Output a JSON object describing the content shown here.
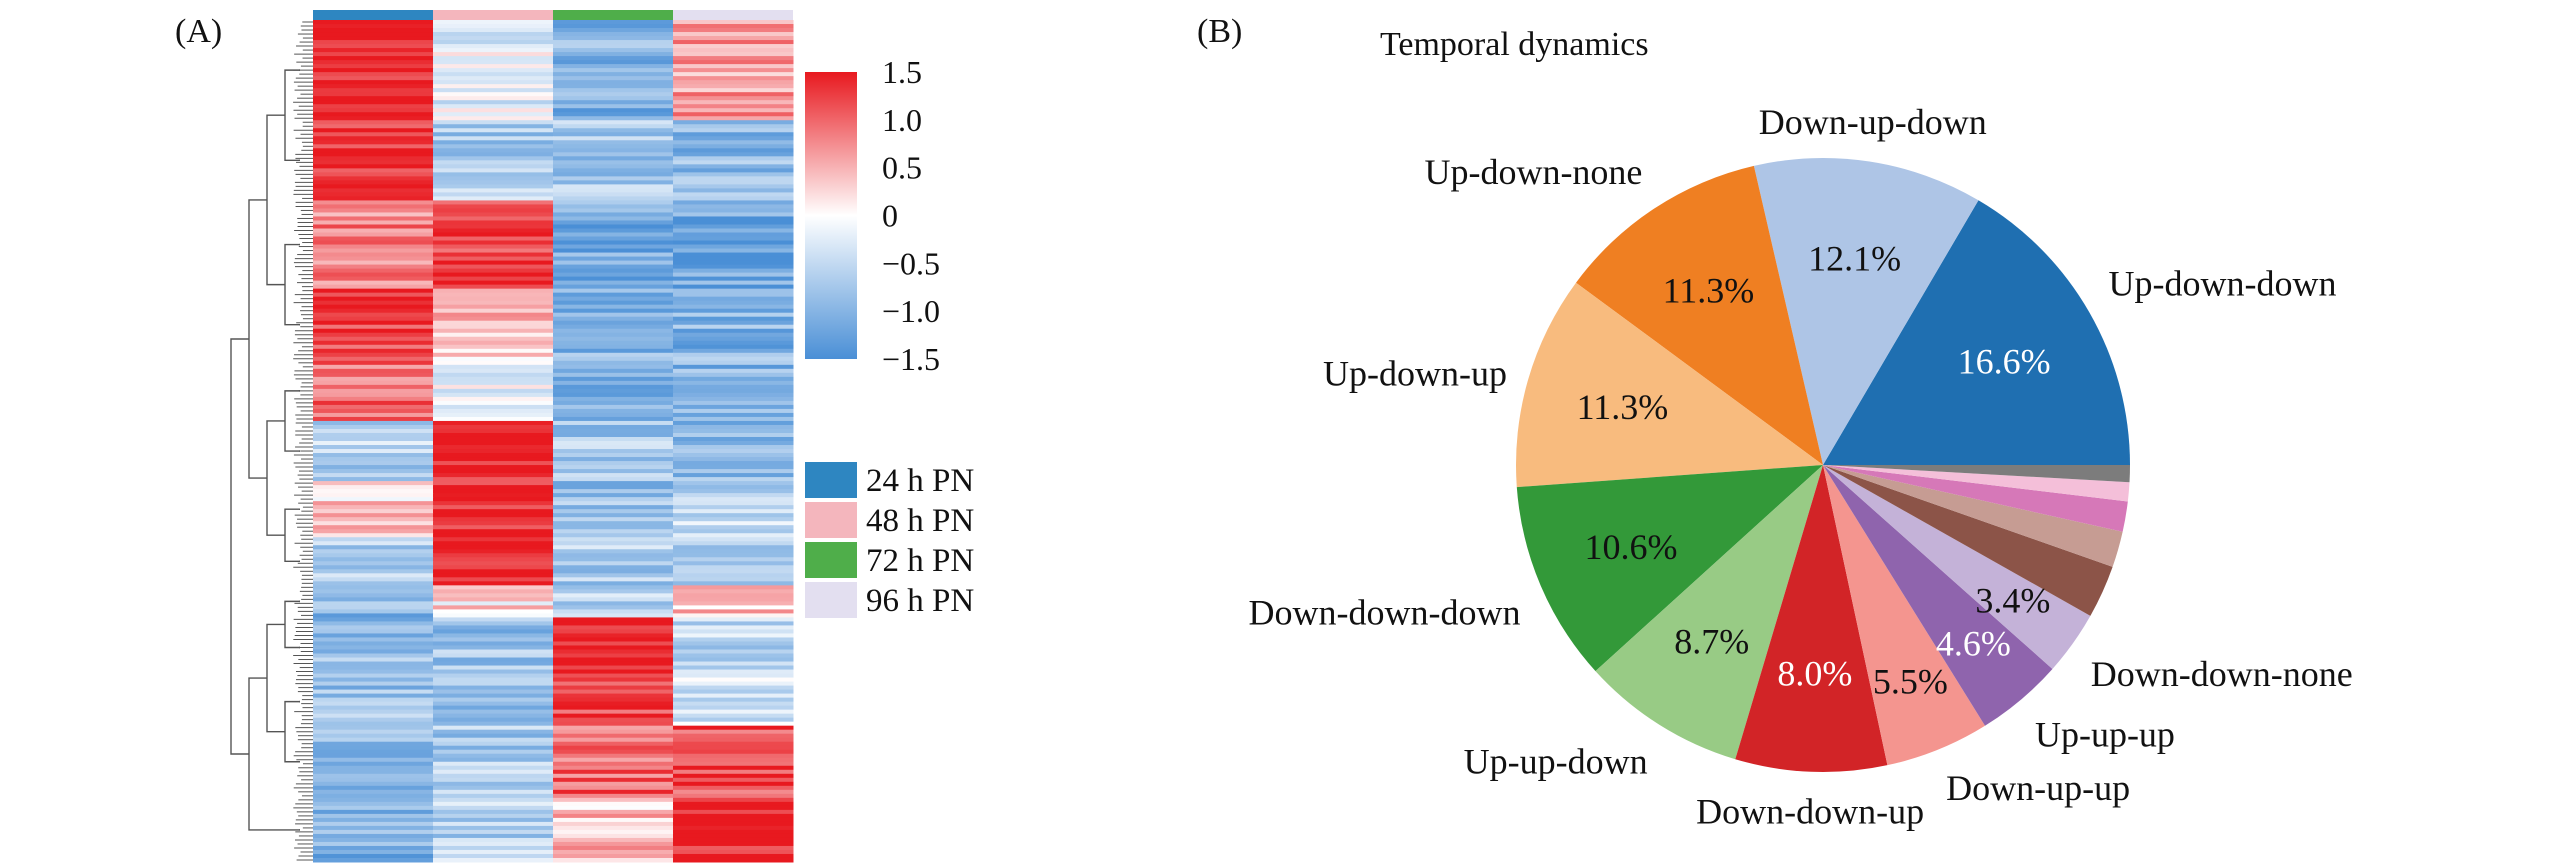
{
  "panel_a": {
    "label": "(A)",
    "chart_data": {
      "type": "heatmap",
      "columns": [
        "24 h PN",
        "48 h PN",
        "72 h PN",
        "96 h PN"
      ],
      "column_colors": [
        "#2e86c1",
        "#f4b6bd",
        "#4fae4a",
        "#e3dff0"
      ],
      "scale": {
        "min": -1.5,
        "max": 1.5,
        "low_color": "#4a8fd6",
        "mid_color": "#ffffff",
        "high_color": "#e8191f"
      },
      "colorbar_ticks": [
        "1.5",
        "1.0",
        "0.5",
        "0",
        "−0.5",
        "−1.0",
        "−1.5"
      ],
      "colorbar_values": [
        1.5,
        1.0,
        0.5,
        0,
        -0.5,
        -1.0,
        -1.5
      ],
      "clusters": [
        {
          "size": 25,
          "values": [
            1.5,
            -0.2,
            -1.0,
            0.6
          ]
        },
        {
          "size": 20,
          "values": [
            1.4,
            -0.7,
            -0.7,
            -0.9
          ]
        },
        {
          "size": 22,
          "values": [
            0.8,
            1.3,
            -1.1,
            -1.2
          ]
        },
        {
          "size": 18,
          "values": [
            1.3,
            0.4,
            -1.0,
            -1.0
          ]
        },
        {
          "size": 15,
          "values": [
            1.0,
            -0.2,
            -1.0,
            -1.0
          ]
        },
        {
          "size": 15,
          "values": [
            -0.6,
            1.5,
            -0.7,
            -0.9
          ]
        },
        {
          "size": 14,
          "values": [
            0.3,
            1.5,
            -0.8,
            -0.5
          ]
        },
        {
          "size": 12,
          "values": [
            -0.6,
            1.5,
            -0.7,
            -0.6
          ]
        },
        {
          "size": 8,
          "values": [
            -1.0,
            0.2,
            -0.6,
            0.4
          ]
        },
        {
          "size": 15,
          "values": [
            -0.9,
            -0.8,
            1.5,
            -0.5
          ]
        },
        {
          "size": 12,
          "values": [
            -0.8,
            -0.9,
            1.2,
            -0.4
          ]
        },
        {
          "size": 18,
          "values": [
            -1.0,
            -0.7,
            1.0,
            1.2
          ]
        },
        {
          "size": 16,
          "values": [
            -1.0,
            -0.6,
            0.4,
            1.5
          ]
        }
      ]
    },
    "legend": [
      {
        "label": "24 h PN",
        "color": "#2e86c1"
      },
      {
        "label": "48 h PN",
        "color": "#f4b6bd"
      },
      {
        "label": "72 h PN",
        "color": "#4fae4a"
      },
      {
        "label": "96 h PN",
        "color": "#e3dff0"
      }
    ]
  },
  "panel_b": {
    "label": "(B)",
    "chart_data": {
      "type": "pie",
      "title": "Temporal dynamics",
      "start_angle_deg": 0,
      "direction": "clockwise",
      "slices": [
        {
          "name": "Up-down-down",
          "value": 16.6,
          "label": "16.6%",
          "color": "#1f6fb1",
          "label_color": "#ffffff",
          "name_shown": true
        },
        {
          "name": "Down-up-down",
          "value": 12.1,
          "label": "12.1%",
          "color": "#aec5e6",
          "label_color": "#111111",
          "name_shown": true
        },
        {
          "name": "Up-down-none",
          "value": 11.3,
          "label": "11.3%",
          "color": "#ef7f22",
          "label_color": "#111111",
          "name_shown": true
        },
        {
          "name": "Up-down-up",
          "value": 11.3,
          "label": "11.3%",
          "color": "#f8bb7e",
          "label_color": "#111111",
          "name_shown": true
        },
        {
          "name": "Down-down-down",
          "value": 10.6,
          "label": "10.6%",
          "color": "#339939",
          "label_color": "#111111",
          "name_shown": true
        },
        {
          "name": "Up-up-down",
          "value": 8.7,
          "label": "8.7%",
          "color": "#98cb85",
          "label_color": "#111111",
          "name_shown": true
        },
        {
          "name": "Down-down-up",
          "value": 8.0,
          "label": "8.0%",
          "color": "#d22427",
          "label_color": "#ffffff",
          "name_shown": true
        },
        {
          "name": "Down-up-up",
          "value": 5.5,
          "label": "5.5%",
          "color": "#f4958f",
          "label_color": "#111111",
          "name_shown": true
        },
        {
          "name": "Up-up-up",
          "value": 4.6,
          "label": "4.6%",
          "color": "#8f64ad",
          "label_color": "#ffffff",
          "name_shown": true
        },
        {
          "name": "Down-down-none",
          "value": 3.4,
          "label": "3.4%",
          "color": "#c4b2d8",
          "label_color": "#111111",
          "name_shown": true
        },
        {
          "name": "",
          "value": 2.8,
          "label": "",
          "color": "#8c5448",
          "label_color": "#111111",
          "name_shown": false
        },
        {
          "name": "",
          "value": 1.9,
          "label": "",
          "color": "#c69c93",
          "label_color": "#111111",
          "name_shown": false
        },
        {
          "name": "",
          "value": 1.6,
          "label": "",
          "color": "#d678b8",
          "label_color": "#111111",
          "name_shown": false
        },
        {
          "name": "",
          "value": 1.0,
          "label": "",
          "color": "#f4bfd9",
          "label_color": "#111111",
          "name_shown": false
        },
        {
          "name": "",
          "value": 0.9,
          "label": "",
          "color": "#7c7c7c",
          "label_color": "#111111",
          "name_shown": false
        }
      ]
    }
  }
}
